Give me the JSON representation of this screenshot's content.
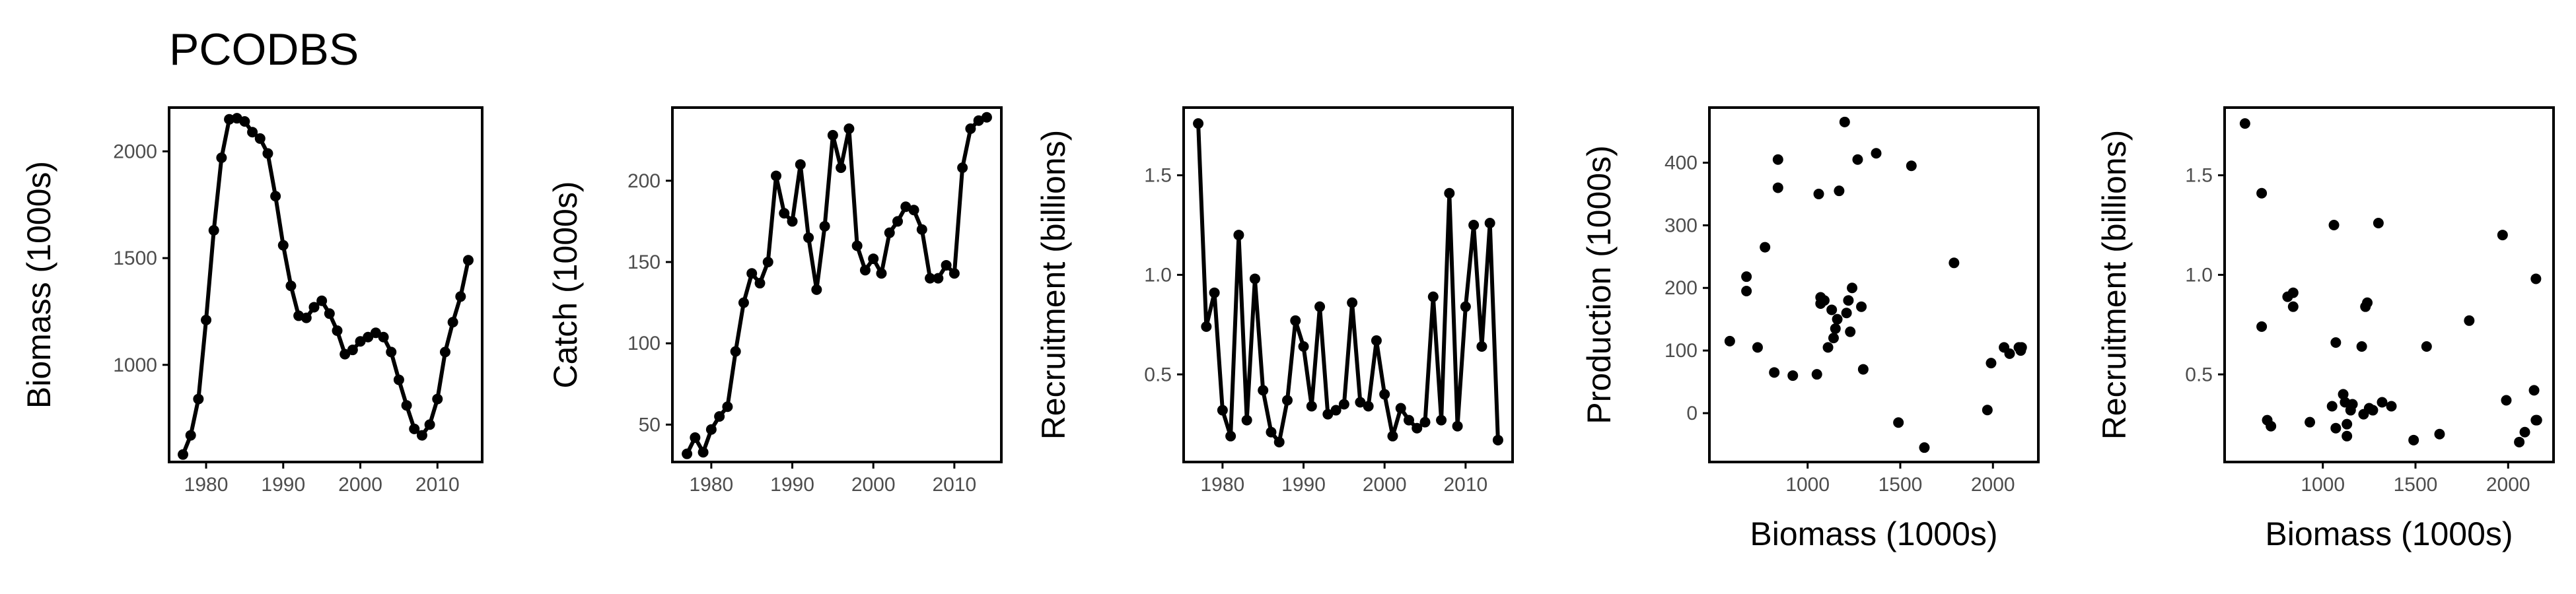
{
  "title": "PCODBS",
  "colors": {
    "ink": "#000000",
    "tick_text": "#4d4d4d"
  },
  "chart_data": [
    {
      "type": "line",
      "name": "biomass-panel",
      "xlabel": "",
      "ylabel": "Biomass (1000s)",
      "xlim": [
        1975.2,
        2015.8
      ],
      "ylim": [
        545,
        2205
      ],
      "xticks": [
        1980,
        1990,
        2000,
        2010
      ],
      "yticks": [
        1000,
        1500,
        2000
      ],
      "grid": false,
      "x": [
        1977,
        1978,
        1979,
        1980,
        1981,
        1982,
        1983,
        1984,
        1985,
        1986,
        1987,
        1988,
        1989,
        1990,
        1991,
        1992,
        1993,
        1994,
        1995,
        1996,
        1997,
        1998,
        1999,
        2000,
        2001,
        2002,
        2003,
        2004,
        2005,
        2006,
        2007,
        2008,
        2009,
        2010,
        2011,
        2012,
        2013,
        2014
      ],
      "y": [
        580,
        670,
        840,
        1210,
        1630,
        1970,
        2150,
        2155,
        2140,
        2090,
        2060,
        1990,
        1790,
        1560,
        1370,
        1230,
        1220,
        1270,
        1300,
        1240,
        1160,
        1050,
        1070,
        1110,
        1130,
        1150,
        1130,
        1060,
        930,
        810,
        700,
        670,
        720,
        840,
        1060,
        1200,
        1320,
        1490
      ]
    },
    {
      "type": "line",
      "name": "catch-panel",
      "xlabel": "",
      "ylabel": "Catch (1000s)",
      "xlim": [
        1975.2,
        2015.8
      ],
      "ylim": [
        27,
        245
      ],
      "xticks": [
        1980,
        1990,
        2000,
        2010
      ],
      "yticks": [
        50,
        100,
        150,
        200
      ],
      "grid": false,
      "x": [
        1977,
        1978,
        1979,
        1980,
        1981,
        1982,
        1983,
        1984,
        1985,
        1986,
        1987,
        1988,
        1989,
        1990,
        1991,
        1992,
        1993,
        1994,
        1995,
        1996,
        1997,
        1998,
        1999,
        2000,
        2001,
        2002,
        2003,
        2004,
        2005,
        2006,
        2007,
        2008,
        2009,
        2010,
        2011,
        2012,
        2013,
        2014
      ],
      "y": [
        32,
        42,
        33,
        47,
        55,
        61,
        95,
        125,
        143,
        137,
        150,
        203,
        180,
        175,
        210,
        165,
        133,
        172,
        228,
        208,
        232,
        160,
        145,
        152,
        143,
        168,
        175,
        184,
        182,
        170,
        140,
        140,
        148,
        143,
        208,
        232,
        237,
        239
      ]
    },
    {
      "type": "line",
      "name": "recruitment-panel",
      "xlabel": "",
      "ylabel": "Recruitment (billions)",
      "xlim": [
        1975.2,
        2015.8
      ],
      "ylim": [
        0.06,
        1.84
      ],
      "xticks": [
        1980,
        1990,
        2000,
        2010
      ],
      "yticks": [
        0.5,
        1.0,
        1.5
      ],
      "ytick_labels": [
        "0.5",
        "1.0",
        "1.5"
      ],
      "grid": false,
      "x": [
        1977,
        1978,
        1979,
        1980,
        1981,
        1982,
        1983,
        1984,
        1985,
        1986,
        1987,
        1988,
        1989,
        1990,
        1991,
        1992,
        1993,
        1994,
        1995,
        1996,
        1997,
        1998,
        1999,
        2000,
        2001,
        2002,
        2003,
        2004,
        2005,
        2006,
        2007,
        2008,
        2009,
        2010,
        2011,
        2012,
        2013,
        2014
      ],
      "y": [
        1.76,
        0.74,
        0.91,
        0.32,
        0.19,
        1.2,
        0.27,
        0.98,
        0.42,
        0.21,
        0.16,
        0.37,
        0.77,
        0.64,
        0.34,
        0.84,
        0.3,
        0.32,
        0.35,
        0.86,
        0.36,
        0.34,
        0.67,
        0.4,
        0.19,
        0.33,
        0.27,
        0.23,
        0.26,
        0.89,
        0.27,
        1.41,
        0.24,
        0.84,
        1.25,
        0.64,
        1.26,
        0.17
      ]
    },
    {
      "type": "scatter",
      "name": "production-panel",
      "xlabel": "Biomass (1000s)",
      "ylabel": "Production (1000s)",
      "xlim": [
        470,
        2245
      ],
      "ylim": [
        -78,
        488
      ],
      "xticks": [
        1000,
        1500,
        2000
      ],
      "yticks": [
        0,
        100,
        200,
        300,
        400
      ],
      "grid": false,
      "x": [
        580,
        670,
        670,
        730,
        770,
        820,
        840,
        840,
        920,
        1050,
        1060,
        1070,
        1070,
        1090,
        1110,
        1130,
        1140,
        1150,
        1160,
        1170,
        1200,
        1210,
        1220,
        1230,
        1240,
        1270,
        1290,
        1300,
        1370,
        1490,
        1560,
        1630,
        1790,
        1970,
        1990,
        2060,
        2090,
        2140,
        2155,
        2150
      ],
      "y": [
        115,
        195,
        218,
        105,
        265,
        65,
        360,
        405,
        60,
        62,
        350,
        175,
        185,
        180,
        105,
        165,
        120,
        135,
        150,
        355,
        465,
        160,
        180,
        130,
        200,
        405,
        170,
        70,
        415,
        -15,
        395,
        -55,
        240,
        5,
        80,
        105,
        95,
        105,
        105,
        100
      ]
    },
    {
      "type": "scatter",
      "name": "recruitment-biomass-panel",
      "xlabel": "Biomass (1000s)",
      "ylabel": "Recruitment (billions)",
      "xlim": [
        470,
        2245
      ],
      "ylim": [
        0.06,
        1.84
      ],
      "xticks": [
        1000,
        1500,
        2000
      ],
      "yticks": [
        0.5,
        1.0,
        1.5
      ],
      "ytick_labels": [
        "0.5",
        "1.0",
        "1.5"
      ],
      "grid": false,
      "x": [
        580,
        670,
        670,
        700,
        720,
        840,
        810,
        840,
        930,
        1050,
        1060,
        1070,
        1070,
        1110,
        1120,
        1130,
        1130,
        1150,
        1160,
        1210,
        1220,
        1230,
        1240,
        1250,
        1270,
        1300,
        1320,
        1370,
        1490,
        1560,
        1630,
        1790,
        1970,
        1990,
        2060,
        2090,
        2140,
        2150,
        2155,
        2150
      ],
      "y": [
        1.76,
        0.74,
        1.41,
        0.27,
        0.24,
        0.91,
        0.89,
        0.84,
        0.26,
        0.34,
        1.25,
        0.23,
        0.66,
        0.4,
        0.36,
        0.25,
        0.19,
        0.32,
        0.35,
        0.64,
        0.3,
        0.84,
        0.86,
        0.33,
        0.32,
        1.26,
        0.36,
        0.34,
        0.17,
        0.64,
        0.2,
        0.77,
        1.2,
        0.37,
        0.16,
        0.21,
        0.42,
        0.98,
        0.27,
        0.27
      ]
    }
  ]
}
